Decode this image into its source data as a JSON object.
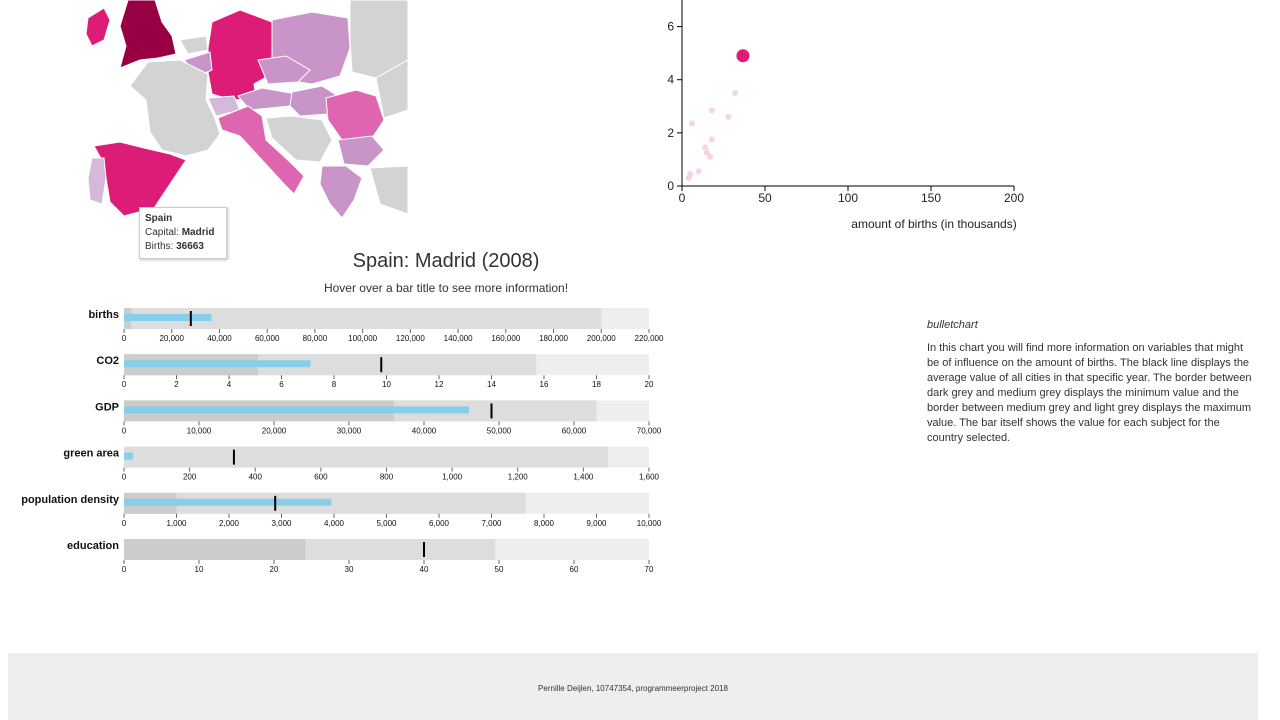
{
  "tooltip": {
    "country": "Spain",
    "capital_label": "Capital:",
    "capital": "Madrid",
    "births_label": "Births:",
    "births": "36663"
  },
  "bullet": {
    "title": "Spain: Madrid (2008)",
    "subtitle": "Hover over a bar title to see more information!"
  },
  "description": {
    "title": "bulletchart",
    "text": "In this chart you will find more information on variables that might be of influence on the amount of births. The black line displays the average value of all cities in that specific year. The border between dark grey and medium grey displays the minimum value and the border between medium grey and light grey displays the maximum value. The bar itself shows the value for each subject for the country selected."
  },
  "footer": {
    "text": "Pernille Deijlen, 10747354, programmeerproject 2018"
  },
  "map": {
    "colors": {
      "none": "#d3d3d3",
      "dark": "#980043",
      "strong": "#dd1c77",
      "mid": "#df65b0",
      "light": "#c994c7",
      "pale": "#d4b9da"
    },
    "regions": [
      {
        "name": "Ireland",
        "level": "strong"
      },
      {
        "name": "United Kingdom",
        "level": "dark"
      },
      {
        "name": "Germany",
        "level": "strong"
      },
      {
        "name": "Poland",
        "level": "light"
      },
      {
        "name": "Belgium",
        "level": "light"
      },
      {
        "name": "Czech Republic",
        "level": "light"
      },
      {
        "name": "Switzerland",
        "level": "pale"
      },
      {
        "name": "Austria",
        "level": "light"
      },
      {
        "name": "Hungary",
        "level": "light"
      },
      {
        "name": "Romania",
        "level": "mid"
      },
      {
        "name": "Italy",
        "level": "mid"
      },
      {
        "name": "Bulgaria",
        "level": "light"
      },
      {
        "name": "Greece",
        "level": "light"
      },
      {
        "name": "Spain",
        "level": "strong"
      },
      {
        "name": "Portugal",
        "level": "pale"
      },
      {
        "name": "France",
        "level": "none"
      }
    ]
  },
  "chart_data": [
    {
      "type": "scatter",
      "xlabel": "amount of births (in thousands)",
      "ylabel": "",
      "xlim": [
        0,
        200
      ],
      "ylim": [
        0,
        7
      ],
      "xticks": [
        "0",
        "50",
        "100",
        "150",
        "200"
      ],
      "yticks": [
        "0",
        "2",
        "4",
        "6"
      ],
      "points": [
        {
          "x": 36.7,
          "y": 4.9,
          "highlight": true
        },
        {
          "x": 32,
          "y": 3.5,
          "highlight": false
        },
        {
          "x": 28,
          "y": 2.6,
          "highlight": false
        },
        {
          "x": 18,
          "y": 2.85,
          "highlight": false
        },
        {
          "x": 18,
          "y": 1.75,
          "highlight": false
        },
        {
          "x": 14,
          "y": 1.45,
          "highlight": false
        },
        {
          "x": 15,
          "y": 1.25,
          "highlight": false
        },
        {
          "x": 17,
          "y": 1.1,
          "highlight": false
        },
        {
          "x": 6,
          "y": 2.35,
          "highlight": false
        },
        {
          "x": 10,
          "y": 0.55,
          "highlight": false
        },
        {
          "x": 5,
          "y": 0.45,
          "highlight": false
        },
        {
          "x": 4,
          "y": 0.3,
          "highlight": false
        }
      ]
    },
    {
      "type": "bullet",
      "rows": [
        {
          "label": "births",
          "max_axis": 220000,
          "ticks": [
            "0",
            "20,000",
            "40,000",
            "60,000",
            "80,000",
            "100,000",
            "120,000",
            "140,000",
            "160,000",
            "180,000",
            "200,000",
            "220,000"
          ],
          "min_value": 3000,
          "max_value": 200000,
          "value": 36663,
          "average": 28000
        },
        {
          "label": "CO2",
          "max_axis": 20,
          "ticks": [
            "0",
            "2",
            "4",
            "6",
            "8",
            "10",
            "12",
            "14",
            "16",
            "18",
            "20"
          ],
          "min_value": 5.1,
          "max_value": 15.7,
          "value": 7.1,
          "average": 9.8
        },
        {
          "label": "GDP",
          "max_axis": 70000,
          "ticks": [
            "0",
            "10,000",
            "20,000",
            "30,000",
            "40,000",
            "50,000",
            "60,000",
            "70,000"
          ],
          "min_value": 36000,
          "max_value": 63000,
          "value": 46000,
          "average": 49000
        },
        {
          "label": "green area",
          "max_axis": 1600,
          "ticks": [
            "0",
            "200",
            "400",
            "600",
            "800",
            "1,000",
            "1,200",
            "1,400",
            "1,600"
          ],
          "min_value": 0,
          "max_value": 1475,
          "value": 27,
          "average": 335
        },
        {
          "label": "population density",
          "max_axis": 10000,
          "ticks": [
            "0",
            "1,000",
            "2,000",
            "3,000",
            "4,000",
            "5,000",
            "6,000",
            "7,000",
            "8,000",
            "9,000",
            "10,000"
          ],
          "min_value": 1000,
          "max_value": 7650,
          "value": 3950,
          "average": 2880
        },
        {
          "label": "education",
          "max_axis": 70,
          "ticks": [
            "0",
            "10",
            "20",
            "30",
            "40",
            "50",
            "60",
            "70"
          ],
          "min_value": 24.2,
          "max_value": 49.5,
          "value": null,
          "average": 40
        }
      ]
    }
  ]
}
